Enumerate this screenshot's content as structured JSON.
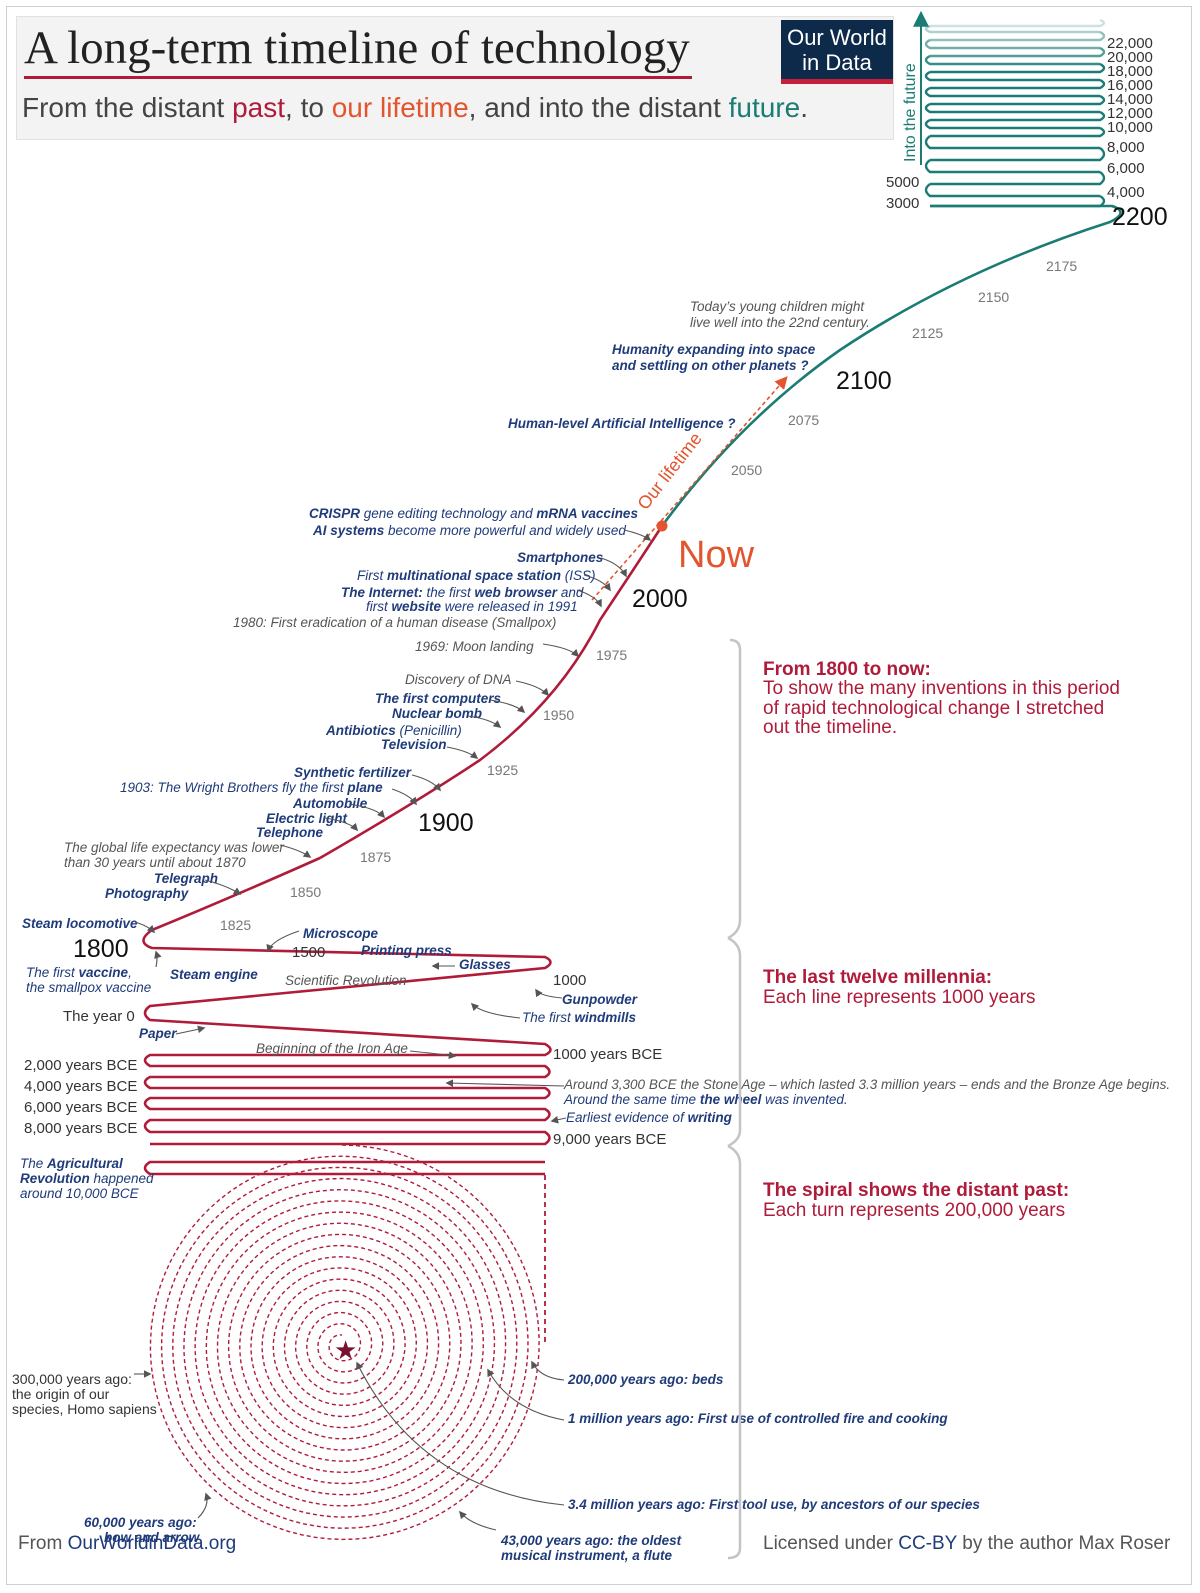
{
  "header": {
    "title": "A long-term timeline of technology",
    "subtitle_parts": [
      "From the distant ",
      "past",
      ", to ",
      "our lifetime",
      ", and into the distant ",
      "future",
      "."
    ]
  },
  "logo": {
    "line1": "Our World",
    "line2": "in Data"
  },
  "colors": {
    "past": "#b01b3a",
    "lifetime": "#e2552e",
    "future": "#1a7c74",
    "label_blue": "#1f3b7a",
    "logo_bg": "#0d2a4b"
  },
  "future_panel": {
    "label": "Into the future",
    "right_ticks": [
      "22,000",
      "20,000",
      "18,000",
      "16,000",
      "14,000",
      "12,000",
      "10,000",
      "8,000",
      "6,000",
      "4,000"
    ],
    "left_ticks": [
      "5000",
      "3000"
    ],
    "end_label": "2200"
  },
  "main_line": {
    "big_labels": [
      "2200",
      "2100",
      "Now",
      "2000",
      "1900",
      "1800"
    ],
    "ticks": [
      "2175",
      "2150",
      "2125",
      "2075",
      "2050",
      "1975",
      "1950",
      "1925",
      "1875",
      "1850",
      "1825"
    ],
    "lifetime_label": "Our lifetime"
  },
  "annotations": {
    "young_children": [
      "Today’s young children might",
      "live well into the 22nd century."
    ],
    "space": [
      "Humanity expanding into space",
      "and settling on other planets ?"
    ],
    "ai_human": "Human-level Artificial Intelligence ?",
    "crispr": [
      "CRISPR",
      " gene editing technology and ",
      "mRNA vaccines"
    ],
    "ai_systems": [
      "AI systems",
      " become more powerful and widely used"
    ],
    "smartphones": "Smartphones",
    "iss": [
      "First ",
      "multinational space station",
      " (ISS)"
    ],
    "internet": [
      "The Internet:",
      " the first ",
      "web browser",
      " and"
    ],
    "website": [
      "first ",
      "website",
      " were released in 1991"
    ],
    "smallpox": "1980: First eradication of a human disease (Smallpox)",
    "moon": "1969: Moon landing",
    "dna": "Discovery of DNA",
    "computers": "The first computers",
    "nuclear": "Nuclear bomb",
    "antibiotics": [
      "Antibiotics",
      " (Penicillin)"
    ],
    "television": "Television",
    "fertilizer": "Synthetic fertilizer",
    "wright": [
      "1903: The Wright Brothers fly the first ",
      "plane"
    ],
    "automobile": "Automobile",
    "electric": "Electric light",
    "telephone": "Telephone",
    "life_expectancy": [
      "The global life expectancy was lower",
      "than 30 years until about 1870"
    ],
    "telegraph": "Telegraph",
    "photography": "Photography",
    "steam_loco": "Steam locomotive",
    "vaccine": [
      "The first ",
      "vaccine",
      ","
    ],
    "vaccine2": "the smallpox vaccine",
    "steam_engine": "Steam engine",
    "microscope": "Microscope",
    "y1500": "1500",
    "printing": "Printing press",
    "glasses": "Glasses",
    "sci_rev": "Scientific Revolution",
    "y1000": "1000",
    "gunpowder": "Gunpowder",
    "windmills": [
      "The first ",
      "windmills"
    ],
    "year0": "The year 0",
    "paper": "Paper",
    "iron_age": "Beginning of the Iron Age",
    "bce1000": "1000 years BCE",
    "bce2000": "2,000 years BCE",
    "bce4000": "4,000 years BCE",
    "bce6000": "6,000 years BCE",
    "bce8000": "8,000 years BCE",
    "bce9000": "9,000 years BCE",
    "bronze": "Around 3,300 BCE the Stone Age – which lasted 3.3 million years – ends and the Bronze Age begins.",
    "wheel": [
      "Around the same time ",
      "the wheel",
      " was invented."
    ],
    "writing": [
      "Earliest evidence of ",
      "writing"
    ],
    "agri": [
      "The ",
      "Agricultural",
      "Revolution",
      " happened",
      "around 10,000 BCE"
    ],
    "homo": [
      "300,000 years ago:",
      "the origin of our",
      "species, Homo sapiens"
    ],
    "beds": "200,000 years ago: beds",
    "fire": "1 million years ago: First use of controlled fire and cooking",
    "tools": "3.4 million years ago: First tool use, by ancestors of our species",
    "bow": [
      "60,000 years ago:",
      "bow and arrow"
    ],
    "flute": [
      "43,000 years ago: the oldest",
      "musical instrument, a flute"
    ]
  },
  "side_notes": [
    {
      "heading": "From 1800 to now:",
      "body": [
        "To show the many inventions in this period",
        "of rapid technological change I stretched",
        "out the timeline."
      ]
    },
    {
      "heading": "The last twelve millennia:",
      "body": [
        "Each line represents 1000 years"
      ]
    },
    {
      "heading": "The spiral shows the distant past:",
      "body": [
        "Each turn represents 200,000 years"
      ]
    }
  ],
  "footer": {
    "left_prefix": "From ",
    "left_url": "OurWorldinData.org",
    "right_prefix": "Licensed under ",
    "right_cc": "CC-BY",
    "right_suffix": " by the author Max Roser"
  }
}
